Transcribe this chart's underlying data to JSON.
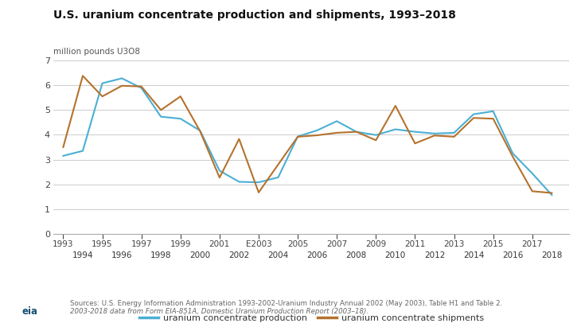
{
  "title": "U.S. uranium concentrate production and shipments, 1993–2018",
  "ylabel": "million pounds U3O8",
  "production_years": [
    1993,
    1994,
    1995,
    1996,
    1997,
    1998,
    1999,
    2000,
    2001,
    2002,
    2003,
    2004,
    2005,
    2006,
    2007,
    2008,
    2009,
    2010,
    2011,
    2012,
    2013,
    2014,
    2015,
    2016,
    2017,
    2018
  ],
  "production_vals": [
    3.15,
    3.35,
    6.08,
    6.28,
    5.89,
    4.73,
    4.65,
    4.17,
    2.55,
    2.1,
    2.08,
    2.28,
    3.93,
    4.18,
    4.55,
    4.12,
    3.99,
    4.22,
    4.12,
    4.05,
    4.08,
    4.83,
    4.95,
    3.25,
    2.44,
    1.57
  ],
  "production_color": "#4BAFD4",
  "shipments_years": [
    1993,
    1994,
    1995,
    1996,
    1997,
    1998,
    1999,
    2000,
    2001,
    2002,
    2003,
    2004,
    2005,
    2006,
    2007,
    2008,
    2009,
    2010,
    2011,
    2012,
    2013,
    2014,
    2015,
    2016,
    2017,
    2018
  ],
  "shipments_vals": [
    3.5,
    6.38,
    5.55,
    5.98,
    5.95,
    5.0,
    5.55,
    4.15,
    2.27,
    3.83,
    1.67,
    2.8,
    3.92,
    3.98,
    4.08,
    4.12,
    3.78,
    5.17,
    3.65,
    3.97,
    3.92,
    4.68,
    4.65,
    3.12,
    1.72,
    1.65
  ],
  "shipments_color": "#B5722D",
  "ylim": [
    0,
    7
  ],
  "yticks": [
    0,
    1,
    2,
    3,
    4,
    5,
    6,
    7
  ],
  "x_top_ticks": [
    1993,
    1995,
    1997,
    1999,
    2001,
    2003,
    2005,
    2007,
    2009,
    2011,
    2013,
    2015,
    2017
  ],
  "x_top_labels": [
    "1993",
    "1995",
    "1997",
    "1999",
    "2001",
    "E2003",
    "2005",
    "2007",
    "2009",
    "2011",
    "2013",
    "2015",
    "2017"
  ],
  "x_bottom_ticks": [
    1994,
    1996,
    1998,
    2000,
    2002,
    2004,
    2006,
    2008,
    2010,
    2012,
    2014,
    2016,
    2018
  ],
  "x_bottom_labels": [
    "1994",
    "1996",
    "1998",
    "2000",
    "2002",
    "2004",
    "2006",
    "2008",
    "2010",
    "2012",
    "2014",
    "2016",
    "2018"
  ],
  "legend_prod": "uranium concentrate production",
  "legend_ship": "uranium concentrate shipments",
  "source_line1": "Sources: U.S. Energy Information Administration 1993-2002-Uranium Industry Annual 2002 (May 2003), Table H1 and Table 2.",
  "source_line2": "2003-2018 data from Form EIA-851A, Domestic Uranium Production Report (2003–18).",
  "bg_color": "#FFFFFF",
  "grid_color": "#CCCCCC",
  "line_width": 1.5,
  "xlim_left": 1992.5,
  "xlim_right": 2018.9
}
